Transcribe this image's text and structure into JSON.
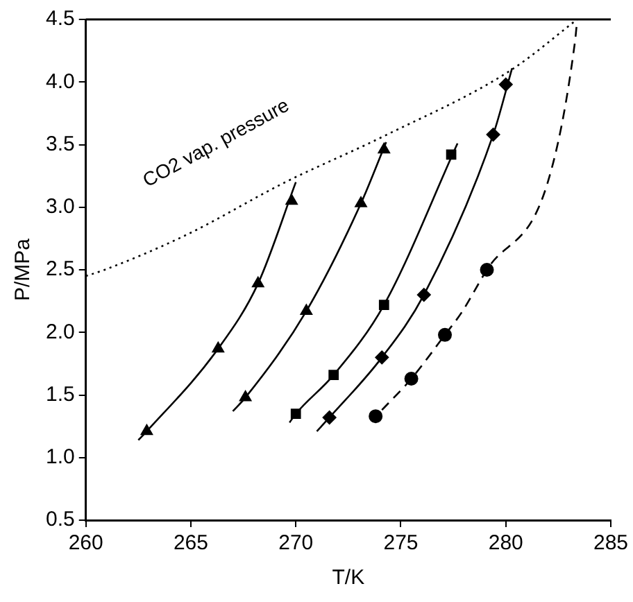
{
  "chart_data": {
    "type": "scatter",
    "xlabel": "T/K",
    "ylabel": "P/MPa",
    "xlim": [
      260,
      285
    ],
    "xticks": [
      260,
      265,
      270,
      275,
      280,
      285
    ],
    "ylim": [
      0.5,
      4.5
    ],
    "yticks": [
      0.5,
      {
        "value": 1,
        "label": "1.0"
      },
      1.5,
      {
        "value": 2,
        "label": "2.0"
      },
      2.5,
      {
        "value": 3,
        "label": "3.0"
      },
      3.5,
      {
        "value": 4,
        "label": "4.0"
      },
      4.5
    ],
    "grid": false,
    "legend": false,
    "annotations": [
      "CO2 vap. pressure"
    ],
    "series": [
      {
        "marker": "triangle",
        "color": "#000000",
        "x": [
          262.9,
          266.3,
          268.2,
          269.8
        ],
        "values": [
          1.21,
          1.87,
          2.39,
          3.05
        ]
      },
      {
        "marker": "triangle",
        "color": "#000000",
        "x": [
          267.6,
          270.5,
          273.1,
          274.2
        ],
        "values": [
          1.48,
          2.17,
          3.03,
          3.46
        ]
      },
      {
        "marker": "square",
        "color": "#000000",
        "x": [
          270.0,
          271.8,
          274.2,
          277.4
        ],
        "values": [
          1.35,
          1.66,
          2.22,
          3.42
        ]
      },
      {
        "marker": "diamond",
        "color": "#000000",
        "x": [
          271.6,
          274.1,
          276.1,
          279.4,
          280.0
        ],
        "values": [
          1.32,
          1.8,
          2.3,
          3.58,
          3.98
        ]
      },
      {
        "marker": "circle",
        "color": "#000000",
        "x": [
          273.8,
          275.5,
          277.1,
          279.1
        ],
        "values": [
          1.33,
          1.63,
          1.98,
          2.5
        ]
      },
      {
        "type": "line",
        "line_style": "solid",
        "color": "#000000",
        "x": [
          262.5,
          262.9,
          266.3,
          268.2,
          270.0
        ],
        "values": [
          1.14,
          1.21,
          1.87,
          2.39,
          3.2
        ]
      },
      {
        "type": "line",
        "line_style": "solid",
        "color": "#000000",
        "x": [
          267.0,
          267.6,
          270.5,
          273.1,
          274.3
        ],
        "values": [
          1.37,
          1.48,
          2.17,
          3.03,
          3.52
        ]
      },
      {
        "type": "line",
        "line_style": "solid",
        "color": "#000000",
        "x": [
          269.7,
          270.0,
          271.8,
          274.2,
          277.7
        ],
        "values": [
          1.28,
          1.35,
          1.66,
          2.22,
          3.51
        ]
      },
      {
        "type": "line",
        "line_style": "solid",
        "color": "#000000",
        "x": [
          271.0,
          271.6,
          274.1,
          276.1,
          279.4,
          280.3
        ],
        "values": [
          1.21,
          1.32,
          1.8,
          2.3,
          3.58,
          4.11
        ]
      },
      {
        "type": "line",
        "line_style": "dashed",
        "color": "#000000",
        "x": [
          274.1,
          275.5,
          277.1,
          277.9,
          279.1,
          282.0,
          283.3,
          283.4
        ],
        "values": [
          1.38,
          1.63,
          1.98,
          2.16,
          2.5,
          3.2,
          4.33,
          4.5
        ]
      },
      {
        "type": "line",
        "line_style": "dotted",
        "color": "#000000",
        "x": [
          260.0,
          260.9,
          264.8,
          269.5,
          274.1,
          280.2,
          283.4
        ],
        "values": [
          2.45,
          2.5,
          2.78,
          3.2,
          3.56,
          4.09,
          4.5
        ]
      }
    ]
  }
}
